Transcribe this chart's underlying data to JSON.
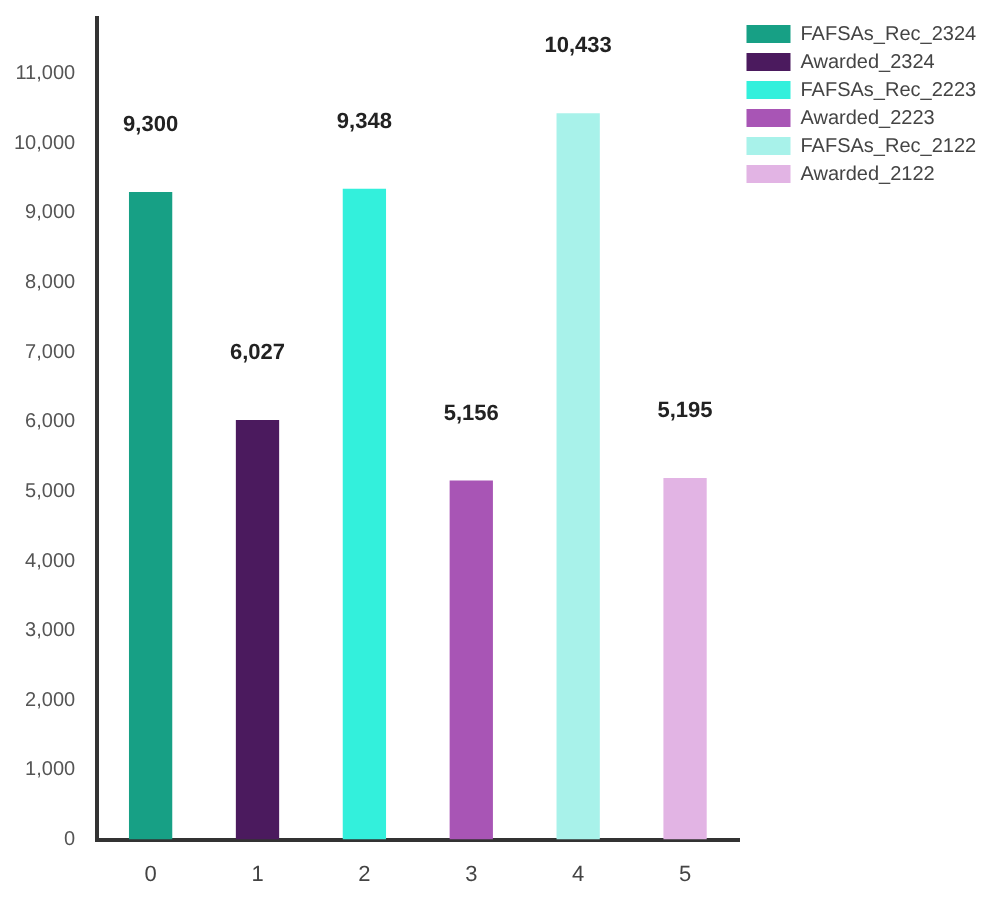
{
  "chart_data": {
    "type": "bar",
    "categories": [
      "0",
      "1",
      "2",
      "3",
      "4",
      "5"
    ],
    "series": [
      {
        "name": "FAFSAs_Rec_2324",
        "color": "#17a085",
        "values": [
          9300,
          null,
          null,
          null,
          null,
          null
        ],
        "value_labels": [
          "9,300",
          null,
          null,
          null,
          null,
          null
        ]
      },
      {
        "name": "Awarded_2324",
        "color": "#4b1a5e",
        "values": [
          null,
          6027,
          null,
          null,
          null,
          null
        ],
        "value_labels": [
          null,
          "6,027",
          null,
          null,
          null,
          null
        ]
      },
      {
        "name": "FAFSAs_Rec_2223",
        "color": "#33f0dc",
        "values": [
          null,
          null,
          9348,
          null,
          null,
          null
        ],
        "value_labels": [
          null,
          null,
          "9,348",
          null,
          null,
          null
        ]
      },
      {
        "name": "Awarded_2223",
        "color": "#a855b5",
        "values": [
          null,
          null,
          null,
          5156,
          null,
          null
        ],
        "value_labels": [
          null,
          null,
          null,
          "5,156",
          null,
          null
        ]
      },
      {
        "name": "FAFSAs_Rec_2122",
        "color": "#a8f2ea",
        "values": [
          null,
          null,
          null,
          null,
          10433,
          null
        ],
        "value_labels": [
          null,
          null,
          null,
          null,
          "10,433",
          null
        ]
      },
      {
        "name": "Awarded_2122",
        "color": "#e2b4e4",
        "values": [
          null,
          null,
          null,
          null,
          null,
          5195
        ],
        "value_labels": [
          null,
          null,
          null,
          null,
          null,
          "5,195"
        ]
      }
    ],
    "ylim": [
      0,
      11800
    ],
    "yticks": [
      {
        "value": 0,
        "label": "0"
      },
      {
        "value": 1000,
        "label": "1,000"
      },
      {
        "value": 2000,
        "label": "2,000"
      },
      {
        "value": 3000,
        "label": "3,000"
      },
      {
        "value": 4000,
        "label": "4,000"
      },
      {
        "value": 5000,
        "label": "5,000"
      },
      {
        "value": 6000,
        "label": "6,000"
      },
      {
        "value": 7000,
        "label": "7,000"
      },
      {
        "value": 8000,
        "label": "8,000"
      },
      {
        "value": 9000,
        "label": "9,000"
      },
      {
        "value": 10000,
        "label": "10,000"
      },
      {
        "value": 11000,
        "label": "11,000"
      }
    ],
    "grid": false,
    "legend": "top right"
  }
}
